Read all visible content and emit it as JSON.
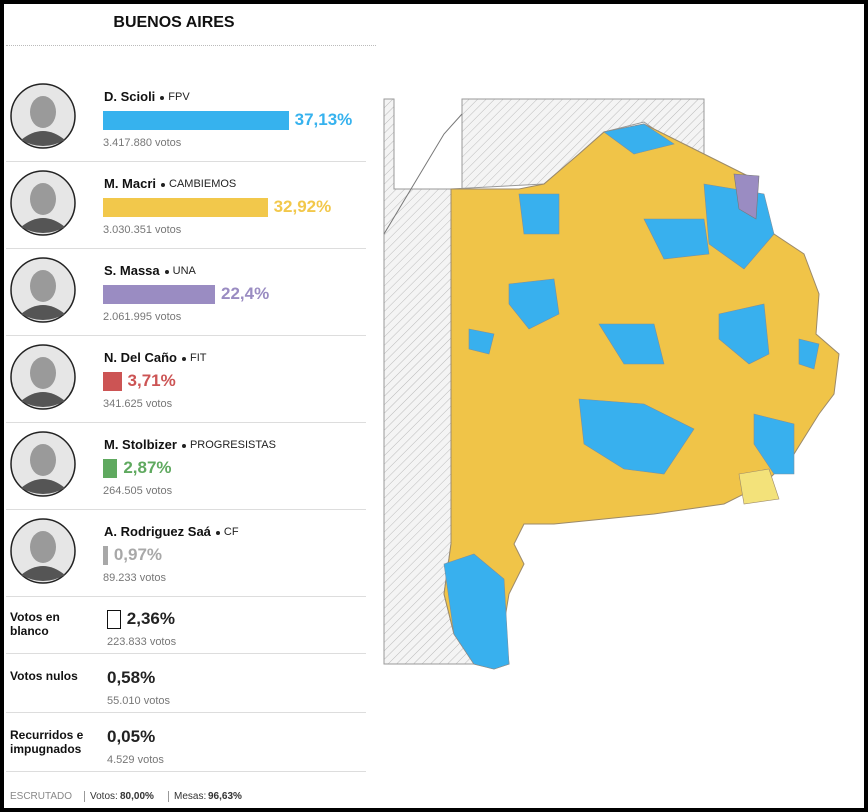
{
  "header": {
    "title": "BUENOS AIRES"
  },
  "candidates": [
    {
      "name": "D. Scioli",
      "party": "FPV",
      "percent": 37.13,
      "percent_label": "37,13%",
      "votes": "3.417.880 votos",
      "color": "#36b2ee"
    },
    {
      "name": "M. Macri",
      "party": "CAMBIEMOS",
      "percent": 32.92,
      "percent_label": "32,92%",
      "votes": "3.030.351 votos",
      "color": "#f2c84b"
    },
    {
      "name": "S. Massa",
      "party": "UNA",
      "percent": 22.4,
      "percent_label": "22,4%",
      "votes": "2.061.995 votos",
      "color": "#9a8cc2"
    },
    {
      "name": "N. Del Caño",
      "party": "FIT",
      "percent": 3.71,
      "percent_label": "3,71%",
      "votes": "341.625 votos",
      "color": "#cc5454"
    },
    {
      "name": "M. Stolbizer",
      "party": "PROGRESISTAS",
      "percent": 2.87,
      "percent_label": "2,87%",
      "votes": "264.505 votos",
      "color": "#5fa95f"
    },
    {
      "name": "A. Rodriguez Saá",
      "party": "CF",
      "percent": 0.97,
      "percent_label": "0,97%",
      "votes": "89.233 votos",
      "color": "#a8a8a8"
    }
  ],
  "other": [
    {
      "label": "Votos en blanco",
      "percent": 2.36,
      "percent_label": "2,36%",
      "votes": "223.833 votos",
      "color": "#ffffff"
    },
    {
      "label": "Votos nulos",
      "percent": 0.58,
      "percent_label": "0,58%",
      "votes": "55.010 votos"
    },
    {
      "label": "Recurridos e impugnados",
      "percent": 0.05,
      "percent_label": "0,05%",
      "votes": "4.529 votos"
    }
  ],
  "footer": {
    "scrutinized": "ESCRUTADO",
    "votes_label": "Votos:",
    "votes": "80,00%",
    "tables_label": "Mesas:",
    "tables": "96,63%"
  }
}
